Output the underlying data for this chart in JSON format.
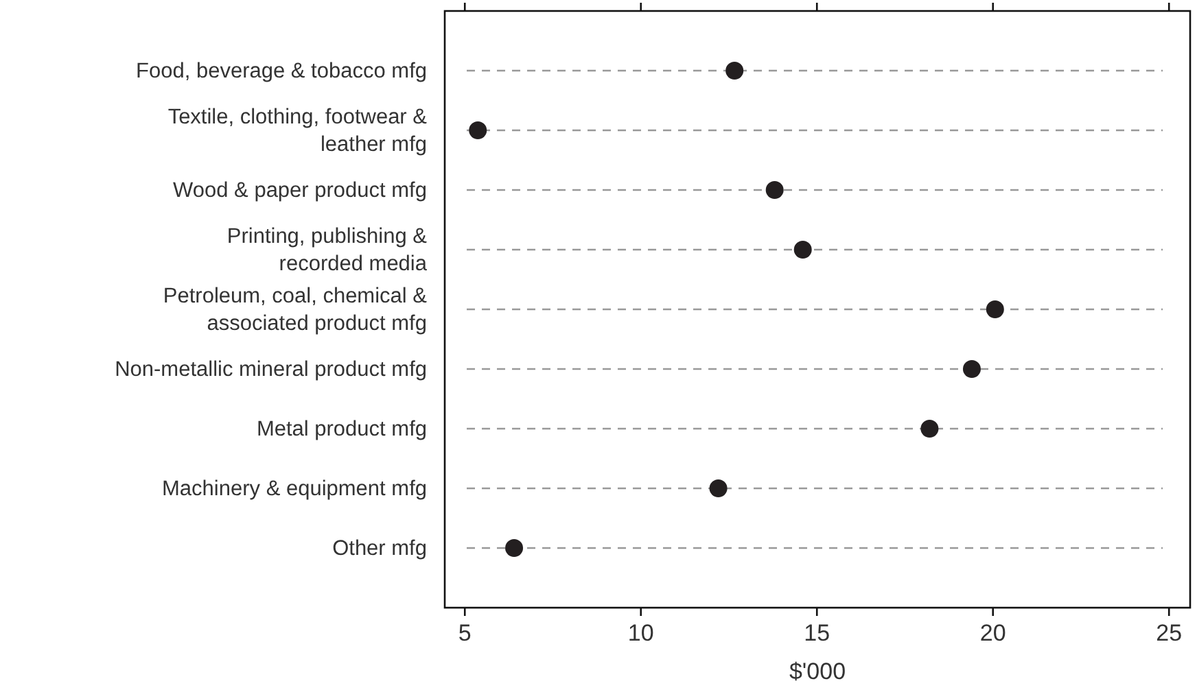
{
  "chart_data": {
    "type": "scatter",
    "orientation": "horizontal",
    "xlabel": "$'000",
    "categories": [
      "Food, beverage & tobacco mfg",
      "Textile, clothing, footwear & leather mfg",
      "Wood & paper product mfg",
      "Printing, publishing & recorded media",
      "Petroleum, coal, chemical & associated product mfg",
      "Non-metallic mineral product mfg",
      "Metal product mfg",
      "Machinery & equipment mfg",
      "Other mfg"
    ],
    "values": [
      12.66,
      5.37,
      13.8,
      14.6,
      20.06,
      19.4,
      18.2,
      12.2,
      6.4
    ],
    "color": "#231f20",
    "marker": "circle",
    "grid": "y",
    "xlim": [
      4.43,
      25.6
    ],
    "xticks": [
      5,
      10,
      15,
      20,
      25
    ]
  }
}
